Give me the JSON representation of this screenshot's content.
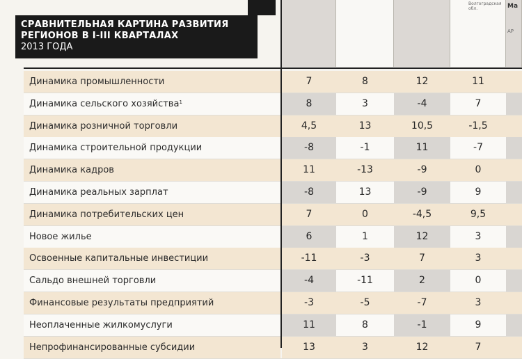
{
  "title": {
    "line1": "СРАВНИТЕЛЬНАЯ КАРТИНА РАЗВИТИЯ",
    "line2": "РЕГИОНОВ В I-III КВАРТАЛАХ",
    "line3": "2013 ГОДА"
  },
  "column_captions": {
    "col4": "Волгоградская обл.",
    "col6a": "AP",
    "col6b": "Ма"
  },
  "rows": [
    {
      "label": "Динамика промышленности",
      "sup": "",
      "values": [
        "7",
        "8",
        "12",
        "11"
      ]
    },
    {
      "label": "Динамика сельского хозяйства",
      "sup": "1",
      "values": [
        "8",
        "3",
        "-4",
        "7"
      ]
    },
    {
      "label": "Динамика розничной торговли",
      "sup": "",
      "values": [
        "4,5",
        "13",
        "10,5",
        "-1,5"
      ]
    },
    {
      "label": "Динамика строительной продукции",
      "sup": "",
      "values": [
        "-8",
        "-1",
        "11",
        "-7"
      ]
    },
    {
      "label": "Динамика кадров",
      "sup": "",
      "values": [
        "11",
        "-13",
        "-9",
        "0"
      ]
    },
    {
      "label": "Динамика реальных зарплат",
      "sup": "",
      "values": [
        "-8",
        "13",
        "-9",
        "9"
      ]
    },
    {
      "label": "Динамика потребительских цен",
      "sup": "",
      "values": [
        "7",
        "0",
        "-4,5",
        "9,5"
      ]
    },
    {
      "label": "Новое жилье",
      "sup": "",
      "values": [
        "6",
        "1",
        "12",
        "3"
      ]
    },
    {
      "label": "Освоенные капитальные инвестиции",
      "sup": "",
      "values": [
        "-11",
        "-3",
        "7",
        "3"
      ]
    },
    {
      "label": "Сальдо внешней торговли",
      "sup": "",
      "values": [
        "-4",
        "-11",
        "2",
        "0"
      ]
    },
    {
      "label": "Финансовые результаты предприятий",
      "sup": "",
      "values": [
        "-3",
        "-5",
        "-7",
        "3"
      ]
    },
    {
      "label": "Неоплаченные жилкомуслуги",
      "sup": "",
      "values": [
        "11",
        "8",
        "-1",
        "9"
      ]
    },
    {
      "label": "Непрофинансированные субсидии",
      "sup": "",
      "values": [
        "13",
        "3",
        "12",
        "7"
      ]
    }
  ],
  "colors": {
    "tan": "#f3e6d2",
    "white": "#faf9f6",
    "gray": "#d9d6d2",
    "title_bg": "#1a1a1a"
  }
}
